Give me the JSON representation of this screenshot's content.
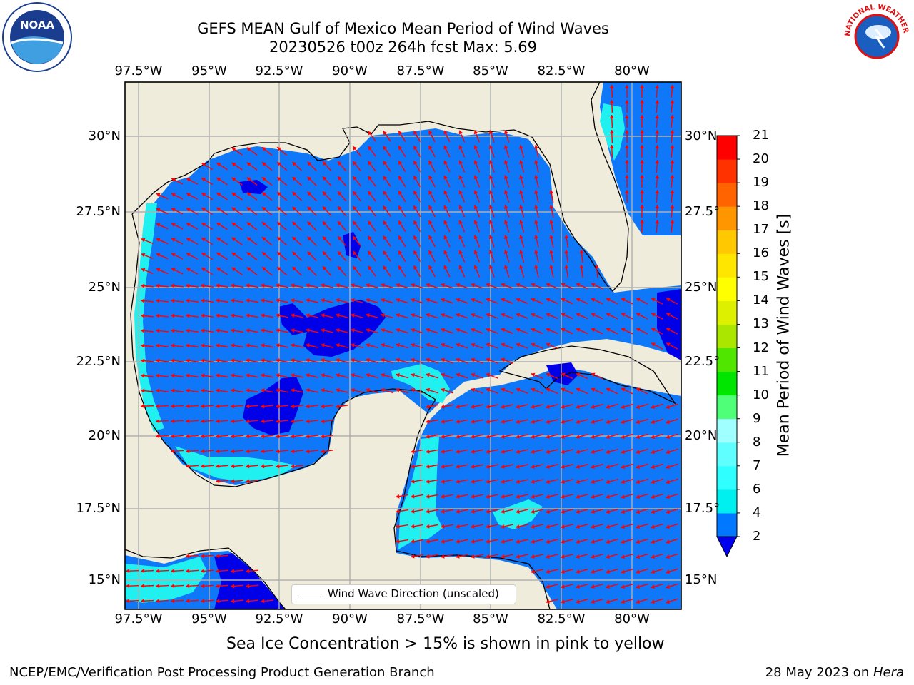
{
  "title": {
    "line1": "GEFS MEAN Gulf of Mexico Mean Period of Wind Waves",
    "line2": "20230526 t00z 264h fcst   Max: 5.69"
  },
  "axes": {
    "lon_ticks": [
      "97.5°W",
      "95°W",
      "92.5°W",
      "90°W",
      "87.5°W",
      "85°W",
      "82.5°W",
      "80°W"
    ],
    "lat_ticks_left": [
      "30°N",
      "27.5°N",
      "25°N",
      "22.5°N",
      "20°N",
      "17.5°N",
      "15°N"
    ],
    "lat_ticks_right": [
      "30°N",
      "27.5°",
      "25°N",
      "22.5°",
      "20°N",
      "17.5°",
      "15°N"
    ],
    "lon_range": [
      -98,
      -78.3
    ],
    "lat_range": [
      14,
      31.8
    ],
    "grid": true
  },
  "legend": {
    "label": "Wind Wave Direction (unscaled)",
    "placement": "lower-center"
  },
  "colorbar": {
    "title": "Mean Period of Wind Waves [s]",
    "labels": [
      "2",
      "4",
      "6",
      "7",
      "8",
      "9",
      "10",
      "11",
      "12",
      "13",
      "14",
      "15",
      "16",
      "17",
      "18",
      "19",
      "20",
      "21"
    ],
    "colors": [
      "#0000ee",
      "#0078ff",
      "#00f0f0",
      "#30ffff",
      "#60ffff",
      "#a0ffff",
      "#50ff78",
      "#00e600",
      "#50e600",
      "#aae600",
      "#dcf000",
      "#ffff00",
      "#ffe600",
      "#ffc800",
      "#ff9600",
      "#ff6400",
      "#ff3200",
      "#ff0000"
    ]
  },
  "chart_data": {
    "type": "heatmap",
    "variable": "Mean Period of Wind Waves [s]",
    "max": 5.69,
    "levels": [
      2,
      4,
      6,
      7,
      8,
      9,
      10,
      11,
      12,
      13,
      14,
      15,
      16,
      17,
      18,
      19,
      20,
      21
    ],
    "arrow_color": "#ff0000"
  },
  "notes": {
    "sea_ice": "Sea Ice Concentration > 15% is shown in pink to yellow",
    "footer_left": "NCEP/EMC/Verification Post Processing Product Generation Branch",
    "footer_right_prefix": "28 May 2023 on ",
    "footer_right_host": "Hera"
  },
  "colors": {
    "land": "#efecdc",
    "ocean_main": "#0f78f8",
    "ocean_low": "#0000e8",
    "ocean_cyan": "#20f0f0",
    "grid": "#b0b0b0"
  },
  "logos": {
    "noaa": "NOAA",
    "nws": "NATIONAL WEATHER SERVICE"
  }
}
